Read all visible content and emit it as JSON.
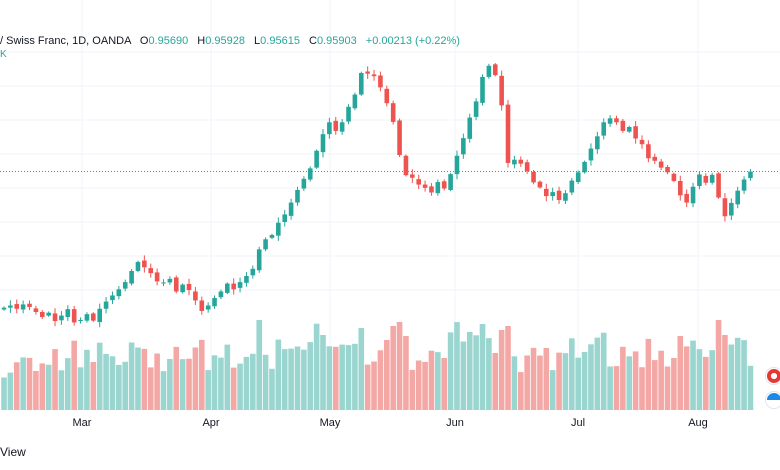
{
  "header": {
    "symbol_text": "/ Swiss Franc, 1D, OANDA",
    "open_key": "O",
    "open_val": "0.95690",
    "high_key": "H",
    "high_val": "0.95928",
    "low_key": "L",
    "low_val": "0.95615",
    "close_key": "C",
    "close_val": "0.95903",
    "change": "+0.00213 (+0.22%)",
    "vol_text": "K"
  },
  "footer": {
    "text": "View"
  },
  "colors": {
    "up": "#26a69a",
    "down": "#ef5350",
    "up_vol": "#9bd5cf",
    "down_vol": "#f4a8a6",
    "grid": "#f0f3fa"
  },
  "chart_data": {
    "type": "candlestick",
    "months": [
      "Mar",
      "Apr",
      "May",
      "Jun",
      "Jul",
      "Aug"
    ],
    "last_close": 0.95903,
    "grid": true,
    "closes": [
      0.9212,
      0.9218,
      0.9209,
      0.9221,
      0.9214,
      0.92,
      0.9186,
      0.9198,
      0.9175,
      0.919,
      0.9208,
      0.9171,
      0.9178,
      0.9194,
      0.9176,
      0.9209,
      0.9229,
      0.9246,
      0.9263,
      0.9283,
      0.9314,
      0.9339,
      0.9324,
      0.9308,
      0.9285,
      0.9282,
      0.9292,
      0.9257,
      0.9276,
      0.9261,
      0.9232,
      0.9203,
      0.9218,
      0.9239,
      0.9257,
      0.9279,
      0.9263,
      0.9283,
      0.93,
      0.932,
      0.9374,
      0.9402,
      0.9414,
      0.9448,
      0.9471,
      0.9504,
      0.9539,
      0.957,
      0.9599,
      0.9648,
      0.9694,
      0.9727,
      0.9703,
      0.9727,
      0.977,
      0.9804,
      0.9864,
      0.9862,
      0.9855,
      0.9824,
      0.978,
      0.9728,
      0.9636,
      0.958,
      0.9573,
      0.9554,
      0.9545,
      0.9532,
      0.9561,
      0.9543,
      0.9583,
      0.9634,
      0.9683,
      0.974,
      0.9785,
      0.9853,
      0.9884,
      0.9858,
      0.9774,
      0.9614,
      0.9623,
      0.9612,
      0.9591,
      0.956,
      0.9546,
      0.9522,
      0.9533,
      0.9511,
      0.953,
      0.9565,
      0.9588,
      0.9617,
      0.9654,
      0.9688,
      0.9727,
      0.9738,
      0.9727,
      0.9703,
      0.9714,
      0.9682,
      0.9666,
      0.9627,
      0.962,
      0.9601,
      0.9588,
      0.9564,
      0.9524,
      0.9504,
      0.9548,
      0.9582,
      0.9559,
      0.9581,
      0.9518,
      0.9466,
      0.9503,
      0.9537,
      0.9568,
      0.959
    ]
  }
}
